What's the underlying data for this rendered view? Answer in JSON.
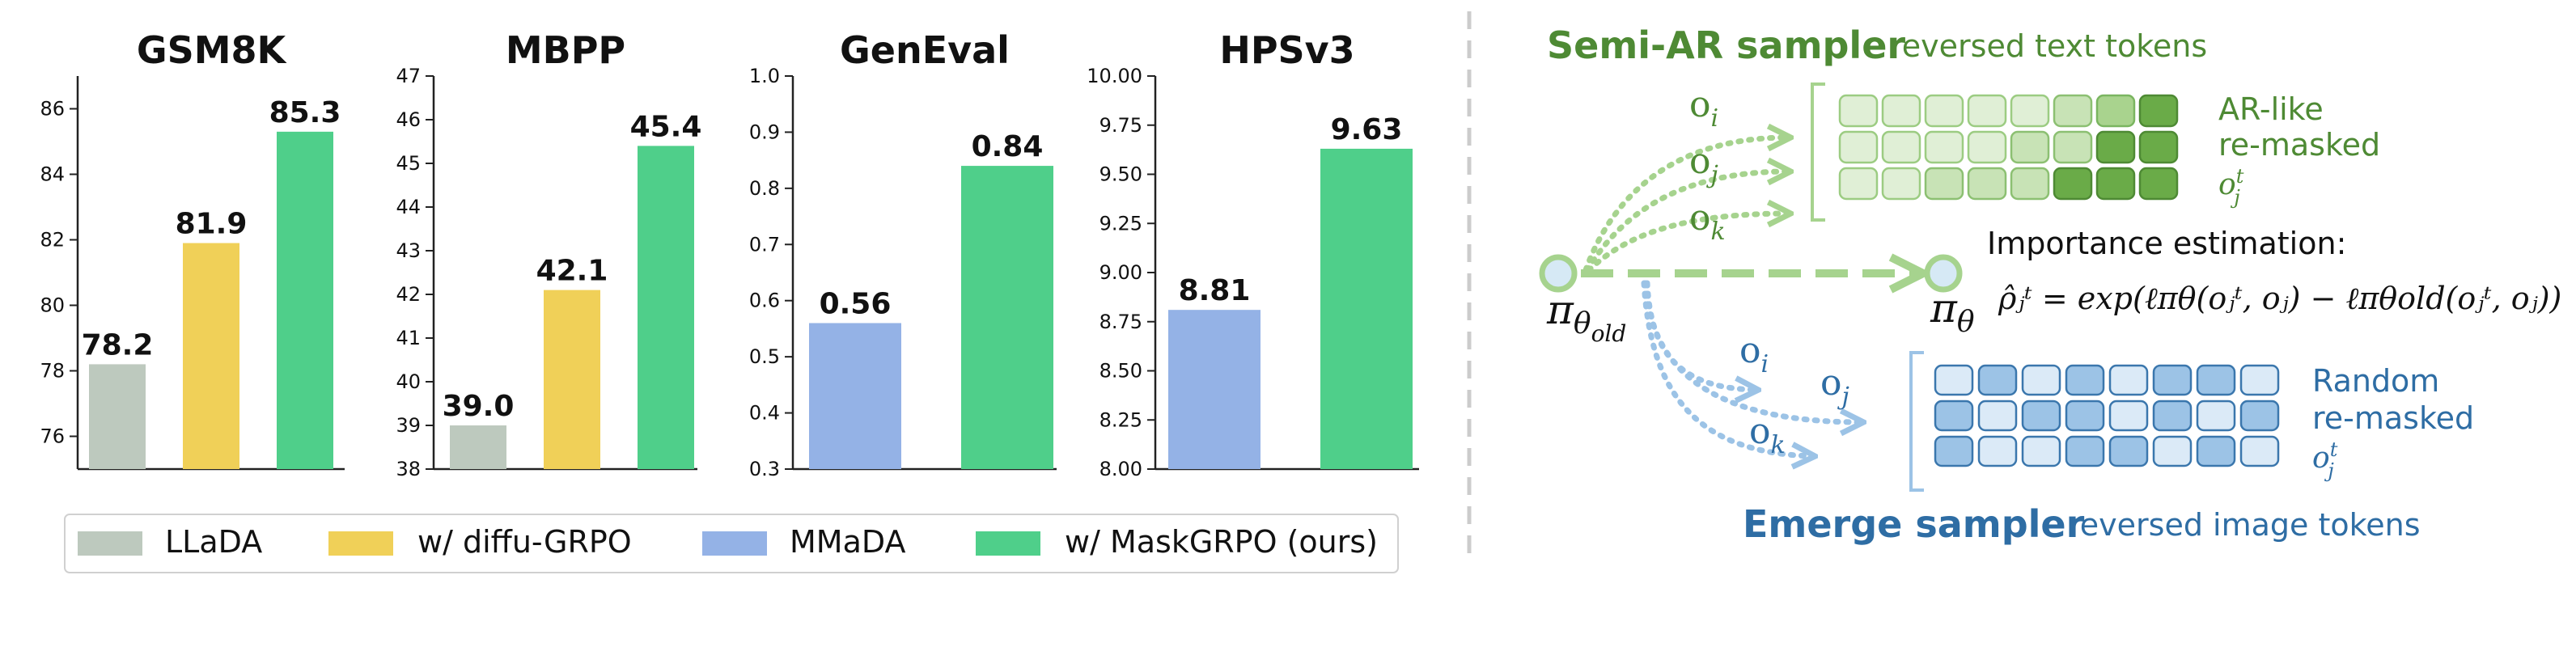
{
  "chart_data": [
    {
      "type": "bar",
      "title": "GSM8K",
      "ylim": [
        75,
        87
      ],
      "yticks": [
        "76",
        "78",
        "80",
        "82",
        "84",
        "86"
      ],
      "ytick_values": [
        76,
        78,
        80,
        82,
        84,
        86
      ],
      "bars": [
        {
          "label": "78.2",
          "value": 78.2,
          "color": "#bdc9be"
        },
        {
          "label": "81.9",
          "value": 81.9,
          "color": "#f0d058"
        },
        {
          "label": "85.3",
          "value": 85.3,
          "color": "#4fcf8a"
        }
      ]
    },
    {
      "type": "bar",
      "title": "MBPP",
      "ylim": [
        38,
        47
      ],
      "yticks": [
        "38",
        "39",
        "40",
        "41",
        "42",
        "43",
        "44",
        "45",
        "46",
        "47"
      ],
      "ytick_values": [
        38,
        39,
        40,
        41,
        42,
        43,
        44,
        45,
        46,
        47
      ],
      "bars": [
        {
          "label": "39.0",
          "value": 39.0,
          "color": "#bdc9be"
        },
        {
          "label": "42.1",
          "value": 42.1,
          "color": "#f0d058"
        },
        {
          "label": "45.4",
          "value": 45.4,
          "color": "#4fcf8a"
        }
      ]
    },
    {
      "type": "bar",
      "title": "GenEval",
      "ylim": [
        0.3,
        1.0
      ],
      "yticks": [
        "0.3",
        "0.4",
        "0.5",
        "0.6",
        "0.7",
        "0.8",
        "0.9",
        "1.0"
      ],
      "ytick_values": [
        0.3,
        0.4,
        0.5,
        0.6,
        0.7,
        0.8,
        0.9,
        1.0
      ],
      "bars": [
        {
          "label": "0.56",
          "value": 0.56,
          "color": "#94b2e6"
        },
        {
          "label": "0.84",
          "value": 0.84,
          "color": "#4fcf8a"
        }
      ]
    },
    {
      "type": "bar",
      "title": "HPSv3",
      "ylim": [
        8.0,
        10.0
      ],
      "yticks": [
        "8.00",
        "8.25",
        "8.50",
        "8.75",
        "9.00",
        "9.25",
        "9.50",
        "9.75",
        "10.00"
      ],
      "ytick_values": [
        8.0,
        8.25,
        8.5,
        8.75,
        9.0,
        9.25,
        9.5,
        9.75,
        10.0
      ],
      "bars": [
        {
          "label": "8.81",
          "value": 8.81,
          "color": "#94b2e6"
        },
        {
          "label": "9.63",
          "value": 9.63,
          "color": "#4fcf8a"
        }
      ]
    }
  ],
  "legend": {
    "items": [
      {
        "label": "LLaDA",
        "color": "#bdc9be"
      },
      {
        "label": "w/ diffu-GRPO",
        "color": "#f0d058"
      },
      {
        "label": "MMaDA",
        "color": "#94b2e6"
      },
      {
        "label": "w/ MaskGRPO (ours)",
        "color": "#4fcf8a"
      }
    ]
  },
  "diagram": {
    "semi_ar_title": "Semi-AR sampler",
    "semi_ar_subtitle": "reversed text tokens",
    "emerge_title": "Emerge sampler",
    "emerge_subtitle": "reversed image tokens",
    "top_labels": [
      "AR-like",
      "re-masked",
      "o",
      "j",
      "t"
    ],
    "bottom_labels": [
      "Random",
      "re-masked",
      "o",
      "j",
      "t"
    ],
    "o_i": "o",
    "sub_i": "i",
    "o_j": "o",
    "sub_j": "j",
    "o_k": "o",
    "sub_k": "k",
    "pi_old": "π",
    "pi_old_sub": "θ",
    "pi_old_subsub": "old",
    "pi_new": "π",
    "pi_new_sub": "θ",
    "importance_title": "Importance estimation:",
    "formula": "ρ̂ⱼᵗ = exp(ℓπθ(oⱼᵗ, oⱼ) − ℓπθold(oⱼᵗ, oⱼ))",
    "green_dark": "#4e8a34",
    "blue_dark": "#2e6da4",
    "green_line": "#a6d38e",
    "blue_line": "#9cc3e6",
    "top_grid_levels": [
      [
        0,
        0,
        0,
        0,
        0,
        1,
        2,
        3
      ],
      [
        0,
        0,
        0,
        0,
        1,
        1,
        3,
        3
      ],
      [
        0,
        0,
        1,
        1,
        1,
        3,
        3,
        3
      ]
    ],
    "bottom_grid_levels": [
      [
        0,
        1,
        0,
        1,
        0,
        1,
        1,
        0
      ],
      [
        1,
        0,
        1,
        1,
        0,
        1,
        0,
        1
      ],
      [
        1,
        0,
        0,
        1,
        1,
        0,
        1,
        0
      ]
    ]
  }
}
